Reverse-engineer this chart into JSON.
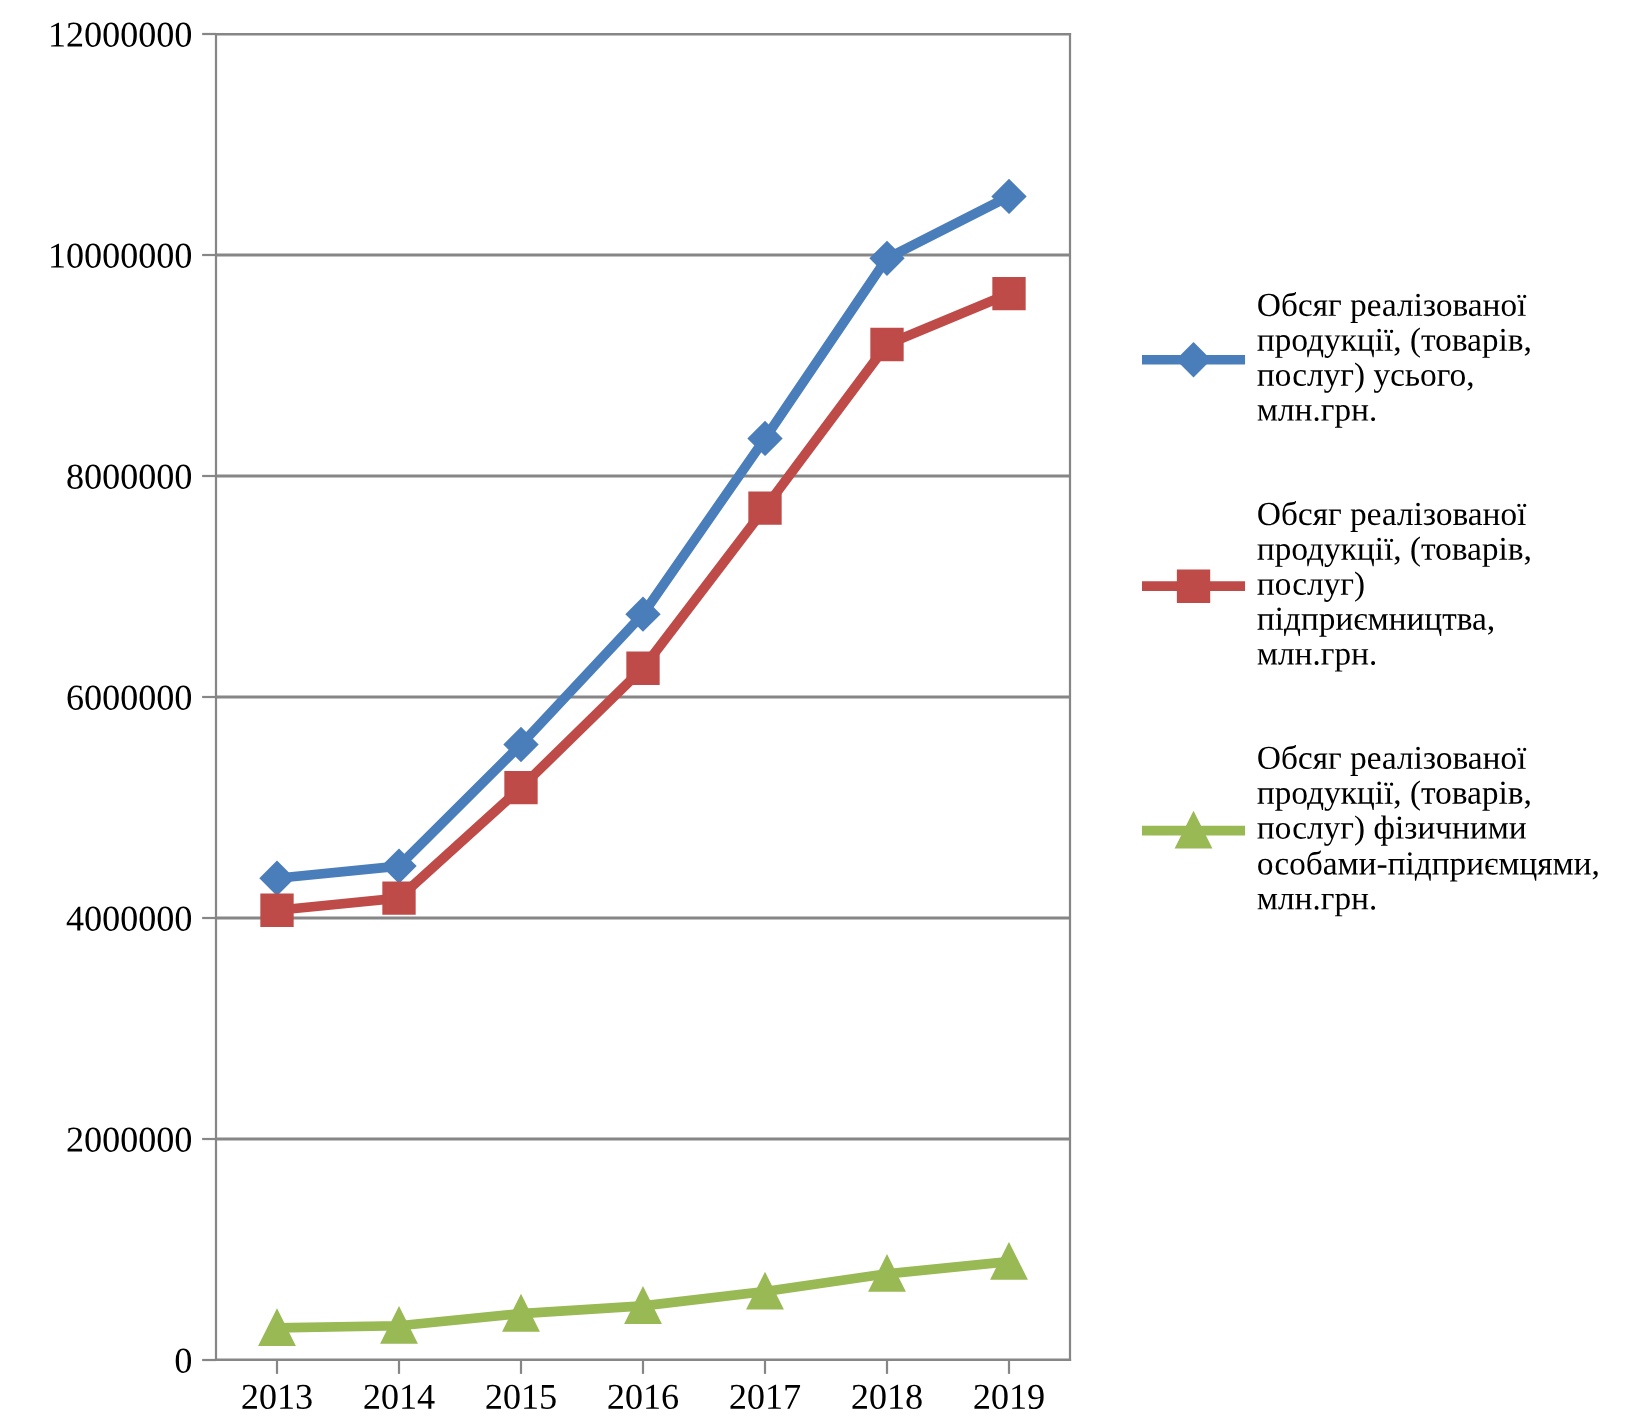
{
  "chart_data": {
    "type": "line",
    "categories": [
      "2013",
      "2014",
      "2015",
      "2016",
      "2017",
      "2018",
      "2019"
    ],
    "series": [
      {
        "name": "Обсяг реалізованої продукції, (товарів, послуг) усього, млн.грн.",
        "color": "#4a7ebb",
        "marker": "diamond",
        "values": [
          4360000,
          4470000,
          5570000,
          6750000,
          8340000,
          9970000,
          10530000
        ]
      },
      {
        "name": "Обсяг реалізованої продукції, (товарів, послуг) підприємництва, млн.грн.",
        "color": "#be4b48",
        "marker": "square",
        "values": [
          4070000,
          4180000,
          5180000,
          6260000,
          7710000,
          9190000,
          9650000
        ]
      },
      {
        "name": "Обсяг реалізованої продукції, (товарів, послуг) фізичними особами-підприємцями, млн.грн.",
        "color": "#98b954",
        "marker": "triangle",
        "values": [
          290000,
          310000,
          420000,
          490000,
          620000,
          780000,
          890000
        ]
      }
    ],
    "ylim": [
      0,
      12000000
    ],
    "yticks": [
      0,
      2000000,
      4000000,
      6000000,
      8000000,
      10000000,
      12000000
    ],
    "grid": "y",
    "legend": "right",
    "line_style": "solid"
  }
}
